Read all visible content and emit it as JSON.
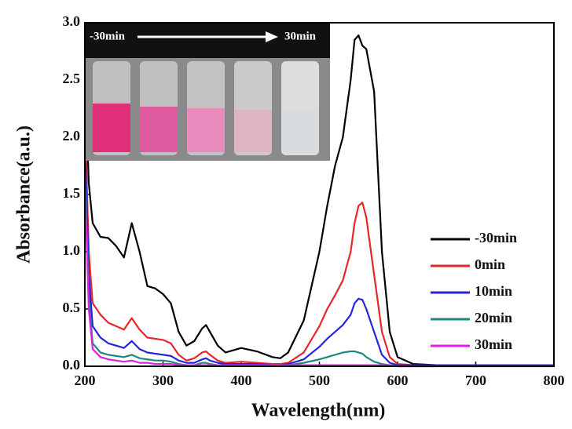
{
  "chart_data": {
    "type": "line",
    "x_label": "Wavelength(nm)",
    "y_label": "Absorbance(a.u.)",
    "xlim": [
      200,
      800
    ],
    "ylim": [
      0,
      3
    ],
    "xticks": [
      200,
      300,
      400,
      500,
      600,
      700,
      800
    ],
    "yticks": [
      {
        "value": 0,
        "label": "0.0"
      },
      0.5,
      {
        "value": 1,
        "label": "1.0"
      },
      1.5,
      {
        "value": 2,
        "label": "2.0"
      },
      2.5,
      {
        "value": 3,
        "label": "3.0"
      }
    ],
    "legend": "right",
    "annotations": [
      "-30min",
      "30min"
    ],
    "x": [
      200,
      205,
      210,
      220,
      230,
      240,
      250,
      260,
      270,
      280,
      290,
      300,
      310,
      320,
      330,
      340,
      350,
      355,
      360,
      370,
      380,
      400,
      420,
      440,
      450,
      460,
      480,
      500,
      510,
      520,
      530,
      540,
      545,
      550,
      555,
      560,
      570,
      580,
      590,
      600,
      620,
      650,
      700,
      800
    ],
    "series": [
      {
        "name": "-30min",
        "color": "#000000",
        "values": [
          2.6,
          1.6,
          1.25,
          1.13,
          1.12,
          1.05,
          0.95,
          1.25,
          1.0,
          0.7,
          0.68,
          0.63,
          0.55,
          0.3,
          0.18,
          0.22,
          0.33,
          0.36,
          0.3,
          0.18,
          0.12,
          0.16,
          0.13,
          0.08,
          0.07,
          0.12,
          0.4,
          1.0,
          1.4,
          1.75,
          2.0,
          2.5,
          2.85,
          2.89,
          2.8,
          2.77,
          2.4,
          1.0,
          0.3,
          0.08,
          0.02,
          0.01,
          0.01,
          0.01
        ]
      },
      {
        "name": "0min",
        "color": "#e8262a",
        "values": [
          2.2,
          1.0,
          0.55,
          0.45,
          0.38,
          0.35,
          0.32,
          0.42,
          0.32,
          0.25,
          0.24,
          0.23,
          0.2,
          0.1,
          0.05,
          0.07,
          0.12,
          0.13,
          0.1,
          0.05,
          0.03,
          0.04,
          0.03,
          0.02,
          0.02,
          0.03,
          0.12,
          0.35,
          0.5,
          0.62,
          0.75,
          1.0,
          1.25,
          1.4,
          1.43,
          1.3,
          0.8,
          0.3,
          0.08,
          0.02,
          0.01,
          0.01,
          0.01,
          0.01
        ]
      },
      {
        "name": "10min",
        "color": "#2424d8",
        "values": [
          2.0,
          0.8,
          0.35,
          0.25,
          0.2,
          0.18,
          0.16,
          0.22,
          0.15,
          0.12,
          0.11,
          0.1,
          0.09,
          0.05,
          0.03,
          0.03,
          0.06,
          0.07,
          0.05,
          0.03,
          0.02,
          0.02,
          0.02,
          0.01,
          0.01,
          0.02,
          0.06,
          0.17,
          0.24,
          0.3,
          0.36,
          0.45,
          0.55,
          0.59,
          0.58,
          0.5,
          0.3,
          0.1,
          0.03,
          0.01,
          0.01,
          0.01,
          0.01,
          0.01
        ]
      },
      {
        "name": "20min",
        "color": "#1a8a80",
        "values": [
          1.7,
          0.6,
          0.2,
          0.12,
          0.1,
          0.09,
          0.08,
          0.1,
          0.07,
          0.06,
          0.05,
          0.05,
          0.04,
          0.02,
          0.01,
          0.01,
          0.03,
          0.03,
          0.02,
          0.01,
          0.01,
          0.01,
          0.01,
          0.01,
          0.01,
          0.01,
          0.03,
          0.06,
          0.08,
          0.1,
          0.12,
          0.13,
          0.13,
          0.12,
          0.11,
          0.08,
          0.04,
          0.02,
          0.01,
          0,
          0,
          0,
          0,
          0
        ]
      },
      {
        "name": "30min",
        "color": "#e020e0",
        "values": [
          1.6,
          0.5,
          0.15,
          0.08,
          0.06,
          0.05,
          0.04,
          0.05,
          0.03,
          0.03,
          0.02,
          0.02,
          0.02,
          0.01,
          0.01,
          0.01,
          0.01,
          0.01,
          0.01,
          0.01,
          0.01,
          0.01,
          0.01,
          0.01,
          0.01,
          0.01,
          0.01,
          0.01,
          0.01,
          0.01,
          0.01,
          0.01,
          0.01,
          0.01,
          0.01,
          0.01,
          0.01,
          0.01,
          0.01,
          0,
          0,
          0,
          0,
          0
        ]
      }
    ]
  }
}
